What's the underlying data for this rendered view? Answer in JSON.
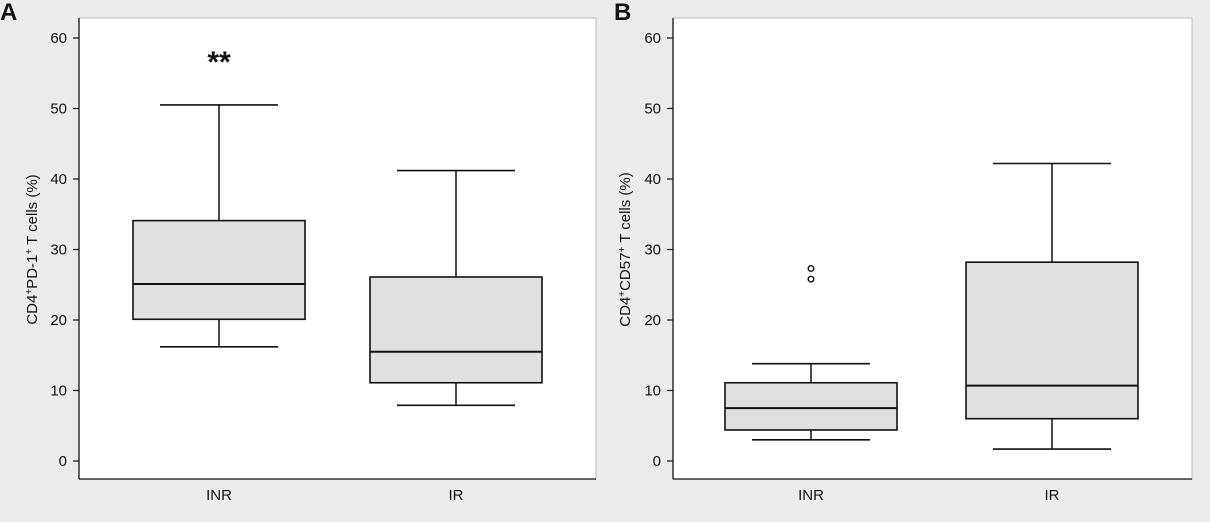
{
  "chart_data": [
    {
      "panel": "A",
      "type": "box",
      "ylabel": {
        "base": "CD4",
        "sup1": "+",
        "mid": "PD-1",
        "sup2": "+",
        "tail": " T cells (%)"
      },
      "ylim": [
        0,
        60
      ],
      "yticks": [
        0,
        10,
        20,
        30,
        40,
        50,
        60
      ],
      "categories": [
        "INR",
        "IR"
      ],
      "boxes": [
        {
          "name": "INR",
          "whisker_low": 16.2,
          "q1": 20.1,
          "median": 25.1,
          "q3": 34.1,
          "whisker_high": 50.5,
          "outliers": []
        },
        {
          "name": "IR",
          "whisker_low": 7.9,
          "q1": 11.1,
          "median": 15.5,
          "q3": 26.1,
          "whisker_high": 41.2,
          "outliers": []
        }
      ],
      "annotation": {
        "text": "**",
        "category": "INR"
      }
    },
    {
      "panel": "B",
      "type": "box",
      "ylabel": {
        "base": "CD4",
        "sup1": "+",
        "mid": "CD57",
        "sup2": "+",
        "tail": " T cells (%)"
      },
      "ylim": [
        0,
        60
      ],
      "yticks": [
        0,
        10,
        20,
        30,
        40,
        50,
        60
      ],
      "categories": [
        "INR",
        "IR"
      ],
      "boxes": [
        {
          "name": "INR",
          "whisker_low": 3.0,
          "q1": 4.4,
          "median": 7.5,
          "q3": 11.1,
          "whisker_high": 13.8,
          "outliers": [
            27.3,
            25.8
          ]
        },
        {
          "name": "IR",
          "whisker_low": 1.7,
          "q1": 6.0,
          "median": 10.7,
          "q3": 28.2,
          "whisker_high": 42.2,
          "outliers": []
        }
      ],
      "annotation": null
    }
  ],
  "colors": {
    "box_fill": "#e0e0e0",
    "plot_bg": "#ffffff",
    "page_bg": "#ececec",
    "ink": "#111111"
  }
}
